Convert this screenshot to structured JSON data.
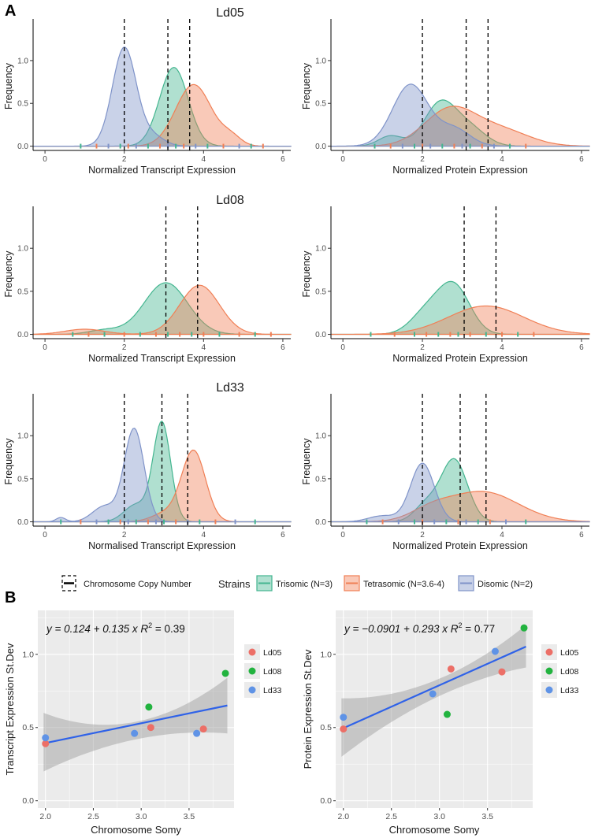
{
  "panel_labels": {
    "a": "A",
    "b": "B"
  },
  "colors": {
    "trisomic": "#43b58f",
    "tetrasomic": "#f07f55",
    "disomic": "#7f93c9",
    "ld05": "#ec6f67",
    "ld08": "#22b33f",
    "ld33": "#5f93e6",
    "fit_line": "#2f62e8",
    "panel_bg": "#ebebeb"
  },
  "legend_a": {
    "copy_label": "Chromosome Copy Number",
    "strains_title": "Strains",
    "items": [
      {
        "key": "trisomic",
        "label": "Trisomic (N=3)"
      },
      {
        "key": "tetrasomic",
        "label": "Tetrasomic (N=3.6-4)"
      },
      {
        "key": "disomic",
        "label": "Disomic (N=2)"
      }
    ]
  },
  "legend_b": {
    "items": [
      "Ld05",
      "Ld08",
      "Ld33"
    ]
  },
  "chart_data": [
    {
      "type": "area",
      "chromosome": "Ld05",
      "title": "Ld05",
      "xlabel": "Normalized Transcript Expression",
      "ylabel": "Frequency",
      "xlim": [
        -0.3,
        6.2
      ],
      "ylim": [
        -0.05,
        1.45
      ],
      "xticks": [
        0,
        2,
        4,
        6
      ],
      "yticks": [
        0.0,
        0.5,
        1.0
      ],
      "vlines": [
        2,
        3.1,
        3.65
      ],
      "series": [
        {
          "name": "Trisomic (N=3)",
          "strain": "trisomic",
          "peaks": [
            [
              3.25,
              0.92,
              0.36
            ]
          ]
        },
        {
          "name": "Tetrasomic (N=3.6-4)",
          "strain": "tetrasomic",
          "peaks": [
            [
              3.75,
              0.72,
              0.45
            ],
            [
              4.7,
              0.1,
              0.25
            ]
          ]
        },
        {
          "name": "Disomic (N=2)",
          "strain": "disomic",
          "peaks": [
            [
              2.0,
              1.15,
              0.3
            ],
            [
              2.7,
              0.12,
              0.3
            ]
          ]
        }
      ],
      "rug": [
        0.9,
        1.3,
        1.6,
        1.9,
        2.1,
        2.3,
        2.6,
        2.9,
        3.1,
        3.3,
        3.5,
        3.8,
        4.1,
        4.5,
        4.9,
        5.2,
        5.5
      ]
    },
    {
      "type": "area",
      "chromosome": "Ld05",
      "title": "",
      "xlabel": "Normalized Protein Expression",
      "ylabel": "Frequency",
      "xlim": [
        -0.3,
        6.2
      ],
      "ylim": [
        -0.05,
        1.45
      ],
      "xticks": [
        0,
        2,
        4,
        6
      ],
      "yticks": [
        0.0,
        0.5,
        1.0
      ],
      "vlines": [
        2,
        3.1,
        3.65
      ],
      "series": [
        {
          "name": "Trisomic (N=3)",
          "strain": "trisomic",
          "peaks": [
            [
              2.45,
              0.5,
              0.4
            ],
            [
              1.2,
              0.12,
              0.3
            ],
            [
              3.2,
              0.2,
              0.4
            ]
          ]
        },
        {
          "name": "Tetrasomic (N=3.6-4)",
          "strain": "tetrasomic",
          "peaks": [
            [
              2.7,
              0.43,
              0.65
            ],
            [
              4.0,
              0.18,
              0.7
            ]
          ]
        },
        {
          "name": "Disomic (N=2)",
          "strain": "disomic",
          "peaks": [
            [
              1.7,
              0.72,
              0.45
            ],
            [
              2.8,
              0.2,
              0.4
            ]
          ]
        }
      ],
      "rug": [
        0.8,
        1.2,
        1.5,
        1.8,
        2.0,
        2.2,
        2.5,
        2.8,
        3.0,
        3.2,
        3.5,
        3.8,
        4.2,
        4.6
      ]
    },
    {
      "type": "area",
      "chromosome": "Ld08",
      "title": "Ld08",
      "xlabel": "Normalized Transcript Expression",
      "ylabel": "Frequency",
      "xlim": [
        -0.3,
        6.2
      ],
      "ylim": [
        -0.05,
        1.45
      ],
      "xticks": [
        0,
        2,
        4,
        6
      ],
      "yticks": [
        0.0,
        0.5,
        1.0
      ],
      "vlines": [
        3.05,
        3.85
      ],
      "series": [
        {
          "name": "Trisomic (N=3)",
          "strain": "trisomic",
          "peaks": [
            [
              3.05,
              0.6,
              0.55
            ],
            [
              1.5,
              0.05,
              0.4
            ]
          ]
        },
        {
          "name": "Tetrasomic (N=3.6-4)",
          "strain": "tetrasomic",
          "peaks": [
            [
              3.9,
              0.57,
              0.5
            ],
            [
              1.0,
              0.06,
              0.5
            ]
          ]
        }
      ],
      "rug": [
        0.7,
        1.1,
        1.5,
        2.0,
        2.4,
        2.8,
        3.1,
        3.4,
        3.7,
        4.0,
        4.4,
        4.9,
        5.3,
        5.7
      ]
    },
    {
      "type": "area",
      "chromosome": "Ld08",
      "title": "",
      "xlabel": "Normalized Protein Expression",
      "ylabel": "Frequency",
      "xlim": [
        -0.3,
        6.2
      ],
      "ylim": [
        -0.05,
        1.45
      ],
      "xticks": [
        0,
        2,
        4,
        6
      ],
      "yticks": [
        0.0,
        0.5,
        1.0
      ],
      "vlines": [
        3.05,
        3.85
      ],
      "series": [
        {
          "name": "Trisomic (N=3)",
          "strain": "trisomic",
          "peaks": [
            [
              2.8,
              0.55,
              0.4
            ],
            [
              2.1,
              0.25,
              0.4
            ]
          ]
        },
        {
          "name": "Tetrasomic (N=3.6-4)",
          "strain": "tetrasomic",
          "peaks": [
            [
              3.6,
              0.33,
              0.95
            ]
          ]
        }
      ],
      "rug": [
        0.7,
        1.3,
        1.8,
        2.1,
        2.4,
        2.7,
        2.9,
        3.2,
        3.6,
        4.0,
        4.4,
        4.8
      ]
    },
    {
      "type": "area",
      "chromosome": "Ld33",
      "title": "Ld33",
      "xlabel": "Normalised Transcript Expression",
      "ylabel": "Frequency",
      "xlim": [
        -0.3,
        6.2
      ],
      "ylim": [
        -0.05,
        1.45
      ],
      "xticks": [
        0,
        2,
        4,
        6
      ],
      "yticks": [
        0.0,
        0.5,
        1.0
      ],
      "vlines": [
        2,
        2.95,
        3.6
      ],
      "series": [
        {
          "name": "Trisomic (N=3)",
          "strain": "trisomic",
          "peaks": [
            [
              2.95,
              1.15,
              0.22
            ],
            [
              2.3,
              0.2,
              0.3
            ]
          ]
        },
        {
          "name": "Tetrasomic (N=3.6-4)",
          "strain": "tetrasomic",
          "peaks": [
            [
              3.75,
              0.82,
              0.3
            ],
            [
              3.05,
              0.1,
              0.35
            ]
          ]
        },
        {
          "name": "Disomic (N=2)",
          "strain": "disomic",
          "peaks": [
            [
              2.25,
              1.08,
              0.25
            ],
            [
              1.5,
              0.18,
              0.3
            ],
            [
              0.4,
              0.05,
              0.12
            ]
          ]
        }
      ],
      "rug": [
        0.4,
        0.9,
        1.3,
        1.6,
        1.9,
        2.1,
        2.3,
        2.6,
        2.8,
        3.0,
        3.3,
        3.6,
        3.9,
        4.3,
        4.8,
        5.3
      ]
    },
    {
      "type": "area",
      "chromosome": "Ld33",
      "title": "",
      "xlabel": "Normalized Protein Expression",
      "ylabel": "Frequency",
      "xlim": [
        -0.3,
        6.2
      ],
      "ylim": [
        -0.05,
        1.45
      ],
      "xticks": [
        0,
        2,
        4,
        6
      ],
      "yticks": [
        0.0,
        0.5,
        1.0
      ],
      "vlines": [
        2,
        2.95,
        3.6
      ],
      "series": [
        {
          "name": "Trisomic (N=3)",
          "strain": "trisomic",
          "peaks": [
            [
              2.8,
              0.72,
              0.33
            ],
            [
              2.1,
              0.2,
              0.3
            ]
          ]
        },
        {
          "name": "Tetrasomic (N=3.6-4)",
          "strain": "tetrasomic",
          "peaks": [
            [
              3.5,
              0.35,
              0.9
            ],
            [
              2.2,
              0.1,
              0.5
            ]
          ]
        },
        {
          "name": "Disomic (N=2)",
          "strain": "disomic",
          "peaks": [
            [
              2.0,
              0.68,
              0.3
            ],
            [
              1.0,
              0.07,
              0.35
            ]
          ]
        }
      ],
      "rug": [
        0.6,
        1.0,
        1.4,
        1.8,
        2.0,
        2.3,
        2.6,
        2.9,
        3.1,
        3.4,
        3.7,
        4.1,
        4.6
      ]
    },
    {
      "type": "scatter",
      "title": "",
      "equation": "y = 0.124 + 0.135 x",
      "r2": "0.39",
      "xlabel": "Chromosome Somy",
      "ylabel": "Transcript Expression St.Dev",
      "xlim": [
        1.92,
        3.97
      ],
      "ylim": [
        -0.05,
        1.3
      ],
      "xticks": [
        2.0,
        2.5,
        3.0,
        3.5
      ],
      "yticks": [
        0.0,
        0.5,
        1.0
      ],
      "intercept": 0.124,
      "slope": 0.135,
      "ci": {
        "x": [
          1.98,
          2.95,
          3.9
        ],
        "lower": [
          0.2,
          0.42,
          0.46
        ],
        "upper": [
          0.6,
          0.54,
          0.84
        ]
      },
      "points": [
        {
          "x": 2.0,
          "y": 0.39,
          "group": "Ld05"
        },
        {
          "x": 3.1,
          "y": 0.5,
          "group": "Ld05"
        },
        {
          "x": 3.65,
          "y": 0.49,
          "group": "Ld05"
        },
        {
          "x": 3.08,
          "y": 0.64,
          "group": "Ld08"
        },
        {
          "x": 3.88,
          "y": 0.87,
          "group": "Ld08"
        },
        {
          "x": 2.0,
          "y": 0.43,
          "group": "Ld33"
        },
        {
          "x": 2.93,
          "y": 0.46,
          "group": "Ld33"
        },
        {
          "x": 3.58,
          "y": 0.46,
          "group": "Ld33"
        }
      ]
    },
    {
      "type": "scatter",
      "title": "",
      "equation": "y = −0.0901 + 0.293 x",
      "r2": "0.77",
      "xlabel": "Chromosome Somy",
      "ylabel": "Protein Expression St.Dev",
      "xlim": [
        1.92,
        3.97
      ],
      "ylim": [
        -0.05,
        1.3
      ],
      "xticks": [
        2.0,
        2.5,
        3.0,
        3.5
      ],
      "yticks": [
        0.0,
        0.5,
        1.0
      ],
      "intercept": -0.0901,
      "slope": 0.293,
      "ci": {
        "x": [
          1.98,
          2.95,
          3.9
        ],
        "lower": [
          0.3,
          0.7,
          0.91
        ],
        "upper": [
          0.7,
          0.82,
          1.2
        ]
      },
      "points": [
        {
          "x": 2.0,
          "y": 0.49,
          "group": "Ld05"
        },
        {
          "x": 3.12,
          "y": 0.9,
          "group": "Ld05"
        },
        {
          "x": 3.65,
          "y": 0.88,
          "group": "Ld05"
        },
        {
          "x": 3.08,
          "y": 0.59,
          "group": "Ld08"
        },
        {
          "x": 3.88,
          "y": 1.18,
          "group": "Ld08"
        },
        {
          "x": 2.0,
          "y": 0.57,
          "group": "Ld33"
        },
        {
          "x": 2.93,
          "y": 0.73,
          "group": "Ld33"
        },
        {
          "x": 3.58,
          "y": 1.02,
          "group": "Ld33"
        }
      ]
    }
  ]
}
